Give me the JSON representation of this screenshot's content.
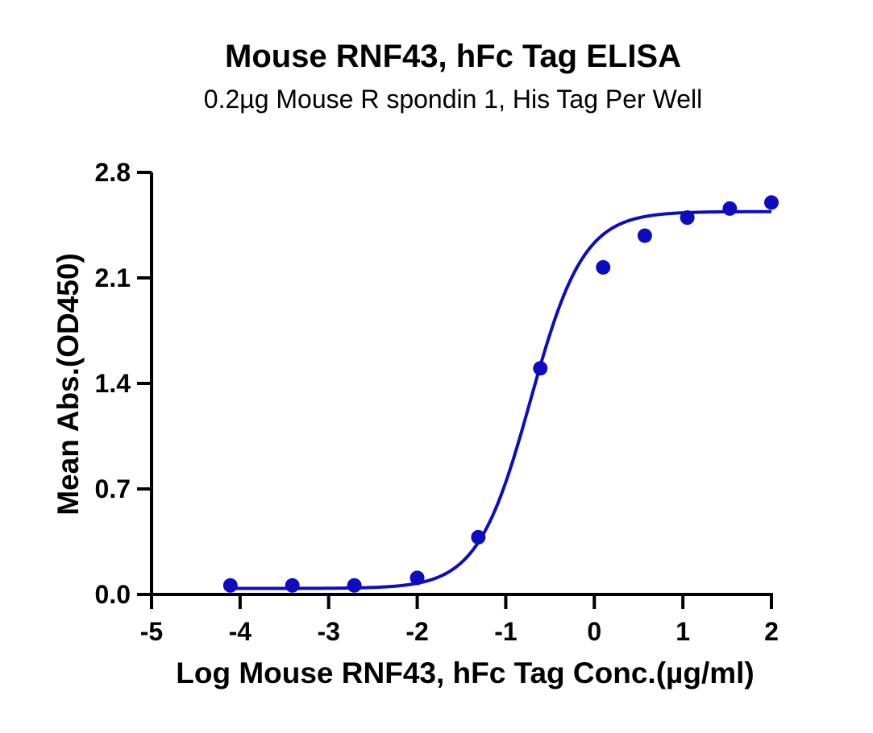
{
  "chart_data": {
    "type": "scatter",
    "title": "Mouse RNF43, hFc Tag ELISA",
    "subtitle": "0.2µg Mouse R spondin 1, His Tag Per Well",
    "xlabel": "Log Mouse RNF43, hFc Tag Conc.(µg/ml)",
    "ylabel": "Mean Abs.(OD450)",
    "xlim": [
      -5,
      2
    ],
    "ylim": [
      0,
      2.8
    ],
    "xticks": [
      -5,
      -4,
      -3,
      -2,
      -1,
      0,
      1,
      2
    ],
    "xtick_labels": [
      "-5",
      "-4",
      "-3",
      "-2",
      "-1",
      "0",
      "1",
      "2"
    ],
    "yticks": [
      0,
      0.7,
      1.4,
      2.1,
      2.8
    ],
    "ytick_labels": [
      "0.0",
      "0.7",
      "1.4",
      "2.1",
      "2.8"
    ],
    "grid": false,
    "color": "#0d0dbf",
    "points": {
      "x": [
        -4.11,
        -3.41,
        -2.71,
        -2.0,
        -1.31,
        -0.61,
        0.1,
        0.57,
        1.05,
        1.53,
        2.0
      ],
      "y": [
        0.06,
        0.06,
        0.06,
        0.11,
        0.38,
        1.5,
        2.17,
        2.38,
        2.5,
        2.56,
        2.6
      ]
    },
    "fit": {
      "model": "4PL",
      "bottom": 0.04,
      "top": 2.54,
      "log_ec50": -0.72,
      "hill": 1.45,
      "x_range": [
        -4.11,
        2.0
      ]
    }
  }
}
